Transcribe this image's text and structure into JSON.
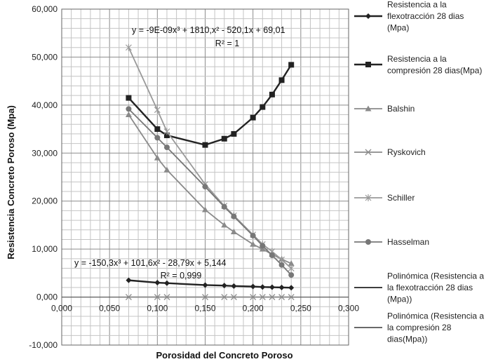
{
  "chart_data": {
    "type": "scatter",
    "xlabel": "Porosidad del  Concreto Poroso",
    "ylabel": "Resistencia Concreto Poroso (Mpa)",
    "xlim": [
      0,
      0.3
    ],
    "ylim": [
      -10000,
      60000
    ],
    "x_ticks": [
      "0,000",
      "0,050",
      "0,100",
      "0,150",
      "0,200",
      "0,250",
      "0,300"
    ],
    "y_ticks": [
      "-10,000",
      "0,000",
      "10,000",
      "20,000",
      "30,000",
      "40,000",
      "50,000",
      "60,000"
    ],
    "grid": true,
    "legend_position": "right",
    "series": [
      {
        "name": "Resistencia a la flexotracción  28 dias (Mpa)",
        "marker": "diamond",
        "color": "#222222",
        "line": true,
        "x": [
          0.07,
          0.1,
          0.11,
          0.15,
          0.17,
          0.18,
          0.2,
          0.21,
          0.22,
          0.23,
          0.24
        ],
        "y": [
          3500,
          3000,
          2900,
          2500,
          2400,
          2300,
          2200,
          2100,
          2050,
          2000,
          1950
        ]
      },
      {
        "name": "Resistencia a la compresión 28 dias(Mpa)",
        "marker": "square",
        "color": "#222222",
        "line": true,
        "x": [
          0.07,
          0.1,
          0.11,
          0.15,
          0.17,
          0.18,
          0.2,
          0.21,
          0.22,
          0.23,
          0.24
        ],
        "y": [
          41500,
          35000,
          33700,
          31700,
          33000,
          34000,
          37400,
          39600,
          42200,
          45200,
          48400
        ]
      },
      {
        "name": "Balshin",
        "marker": "triangle",
        "color": "#8a8a8a",
        "line": true,
        "x": [
          0.07,
          0.1,
          0.11,
          0.15,
          0.17,
          0.18,
          0.2,
          0.21,
          0.22,
          0.23,
          0.24
        ],
        "y": [
          38000,
          29000,
          26500,
          18200,
          15000,
          13600,
          11000,
          10000,
          8900,
          7900,
          7000
        ]
      },
      {
        "name": "Ryskovich",
        "marker": "x",
        "color": "#8a8a8a",
        "line": true,
        "x": [
          0.07,
          0.1,
          0.11,
          0.15,
          0.17,
          0.18,
          0.2,
          0.21,
          0.22,
          0.23,
          0.24
        ],
        "y": [
          0,
          0,
          0,
          0,
          0,
          0,
          0,
          0,
          0,
          0,
          0
        ]
      },
      {
        "name": "Schiller",
        "marker": "star",
        "color": "#999999",
        "line": true,
        "x": [
          0.07,
          0.1,
          0.11,
          0.15,
          0.17,
          0.18,
          0.2,
          0.21,
          0.22,
          0.23,
          0.24
        ],
        "y": [
          52000,
          39000,
          34500,
          23500,
          19000,
          17000,
          13000,
          11000,
          9500,
          7800,
          6000
        ]
      },
      {
        "name": "Hasselman",
        "marker": "circle",
        "color": "#777777",
        "line": true,
        "x": [
          0.07,
          0.1,
          0.11,
          0.15,
          0.17,
          0.18,
          0.2,
          0.21,
          0.22,
          0.23,
          0.24
        ],
        "y": [
          39200,
          33200,
          31200,
          23000,
          18800,
          16800,
          12800,
          10700,
          8700,
          6700,
          4600
        ]
      },
      {
        "name": "Polinómica (Resistencia a la flexotracción  28 dias (Mpa))",
        "marker": "none",
        "color": "#222222",
        "line": true,
        "legend_only": true
      },
      {
        "name": "Polinómica (Resistencia a la compresión 28 dias(Mpa))",
        "marker": "none",
        "color": "#555555",
        "line": true,
        "legend_only": true
      }
    ],
    "annotations": [
      {
        "id": "eq1",
        "text": "y = -9E-09x³ + 1810,x² - 520,1x + 69,01"
      },
      {
        "id": "r1",
        "text": "R² = 1"
      },
      {
        "id": "eq2",
        "text": "y = -150,3x³ + 101,6x² - 28,79x + 5,144"
      },
      {
        "id": "r2",
        "text": "R² = 0,999"
      }
    ]
  }
}
